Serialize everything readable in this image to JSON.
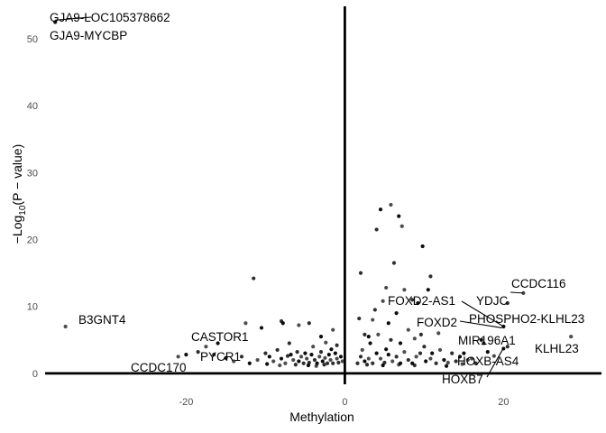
{
  "chart_data": {
    "type": "scatter",
    "xlabel": "Methylation",
    "ylabel_parts": {
      "base": "−Log",
      "sub": "10",
      "rest": "(P − value)"
    },
    "xlim": [
      -38,
      32
    ],
    "ylim": [
      -1.5,
      55
    ],
    "xticks": [
      -20,
      0,
      20
    ],
    "yticks": [
      0,
      10,
      20,
      30,
      40,
      50
    ],
    "grid": false,
    "point_color": "#000000",
    "labeled_points": [
      {
        "label": "GJA9-LOC105378662",
        "x": -36.5,
        "y": 52.8
      },
      {
        "label": "GJA9-MYCBP",
        "x": -36.5,
        "y": 52.5
      },
      {
        "label": "B3GNT4",
        "x": -35.2,
        "y": 7.0
      },
      {
        "label": "CASTOR1",
        "x": -15.8,
        "y": 3.6
      },
      {
        "label": "PYCR1",
        "x": -18.0,
        "y": 2.2
      },
      {
        "label": "CCDC170",
        "x": -24.5,
        "y": 1.0
      },
      {
        "label": "CCDC116",
        "x": 22.5,
        "y": 12.0
      },
      {
        "label": "YDJC",
        "x": 20.5,
        "y": 10.5
      },
      {
        "label": "FOXD2-AS1",
        "x": 20.0,
        "y": 7.0
      },
      {
        "label": "FOXD2",
        "x": 19.8,
        "y": 6.8
      },
      {
        "label": "PHOSPHO2-KLHL23",
        "x": 25.0,
        "y": 6.2
      },
      {
        "label": "KLHL23",
        "x": 28.5,
        "y": 5.5
      },
      {
        "label": "MIR196A1",
        "x": 20.5,
        "y": 4.0
      },
      {
        "label": "HOXB-AS4",
        "x": 20.0,
        "y": 3.7
      },
      {
        "label": "HOXB7",
        "x": 20.0,
        "y": 3.8
      }
    ],
    "points": [
      [
        -36.5,
        52.5
      ],
      [
        -35.2,
        7.0
      ],
      [
        -11.5,
        14.2
      ],
      [
        -10.5,
        6.8
      ],
      [
        -12.5,
        7.5
      ],
      [
        -8.0,
        7.8
      ],
      [
        -7.8,
        7.5
      ],
      [
        -5.8,
        7.2
      ],
      [
        -4.5,
        7.5
      ],
      [
        -3.0,
        5.5
      ],
      [
        -1.5,
        6.5
      ],
      [
        -1.0,
        4.2
      ],
      [
        -16.0,
        4.5
      ],
      [
        -17.5,
        4.0
      ],
      [
        -18.5,
        3.2
      ],
      [
        -20.0,
        2.8
      ],
      [
        -21.0,
        2.5
      ],
      [
        -16.5,
        2.8
      ],
      [
        -15.0,
        2.3
      ],
      [
        -14.0,
        1.8
      ],
      [
        -13.0,
        2.5
      ],
      [
        -12.0,
        1.5
      ],
      [
        -11.0,
        2.0
      ],
      [
        -10.0,
        3.0
      ],
      [
        -9.5,
        2.5
      ],
      [
        -9.0,
        1.8
      ],
      [
        -8.5,
        3.5
      ],
      [
        -8.0,
        2.2
      ],
      [
        -7.5,
        1.5
      ],
      [
        -7.0,
        4.5
      ],
      [
        -6.8,
        2.8
      ],
      [
        -6.5,
        2.0
      ],
      [
        -6.0,
        3.2
      ],
      [
        -5.8,
        1.8
      ],
      [
        -5.5,
        2.5
      ],
      [
        -5.2,
        1.5
      ],
      [
        -5.0,
        3.0
      ],
      [
        -4.8,
        2.2
      ],
      [
        -4.5,
        1.6
      ],
      [
        -4.2,
        2.8
      ],
      [
        -4.0,
        4.0
      ],
      [
        -3.8,
        2.0
      ],
      [
        -3.5,
        1.5
      ],
      [
        -3.2,
        2.5
      ],
      [
        -3.0,
        3.2
      ],
      [
        -2.8,
        1.8
      ],
      [
        -2.5,
        2.3
      ],
      [
        -2.2,
        1.5
      ],
      [
        -2.0,
        2.8
      ],
      [
        -1.8,
        2.0
      ],
      [
        -1.5,
        1.5
      ],
      [
        -1.2,
        3.0
      ],
      [
        -1.0,
        2.2
      ],
      [
        -0.8,
        1.6
      ],
      [
        -0.5,
        2.5
      ],
      [
        -0.3,
        1.8
      ],
      [
        -6.2,
        1.3
      ],
      [
        -4.6,
        1.2
      ],
      [
        -3.6,
        1.1
      ],
      [
        -2.6,
        1.3
      ],
      [
        -9.8,
        1.4
      ],
      [
        -8.2,
        1.2
      ],
      [
        -7.2,
        2.6
      ],
      [
        -1.7,
        3.6
      ],
      [
        -2.4,
        4.6
      ],
      [
        2.0,
        15.0
      ],
      [
        4.5,
        24.5
      ],
      [
        5.8,
        25.2
      ],
      [
        6.2,
        16.5
      ],
      [
        6.8,
        23.5
      ],
      [
        7.2,
        22.0
      ],
      [
        4.0,
        21.5
      ],
      [
        9.8,
        19.0
      ],
      [
        7.5,
        12.5
      ],
      [
        10.8,
        14.5
      ],
      [
        10.5,
        12.5
      ],
      [
        5.2,
        12.8
      ],
      [
        8.5,
        11.0
      ],
      [
        9.2,
        10.5
      ],
      [
        4.8,
        10.8
      ],
      [
        3.8,
        9.5
      ],
      [
        6.5,
        9.0
      ],
      [
        3.5,
        8.0
      ],
      [
        1.8,
        8.2
      ],
      [
        5.5,
        7.5
      ],
      [
        8.0,
        6.5
      ],
      [
        2.5,
        5.8
      ],
      [
        3.0,
        5.5
      ],
      [
        4.2,
        5.8
      ],
      [
        5.8,
        5.0
      ],
      [
        7.0,
        4.5
      ],
      [
        8.8,
        5.2
      ],
      [
        10.0,
        4.0
      ],
      [
        11.0,
        3.0
      ],
      [
        12.0,
        3.5
      ],
      [
        13.5,
        3.0
      ],
      [
        14.5,
        2.5
      ],
      [
        15.5,
        2.0
      ],
      [
        16.5,
        1.5
      ],
      [
        3.2,
        4.5
      ],
      [
        2.2,
        3.5
      ],
      [
        2.0,
        2.5
      ],
      [
        2.5,
        1.8
      ],
      [
        3.0,
        2.2
      ],
      [
        3.5,
        1.5
      ],
      [
        4.0,
        3.0
      ],
      [
        4.5,
        2.2
      ],
      [
        5.0,
        1.6
      ],
      [
        5.5,
        2.8
      ],
      [
        6.0,
        1.8
      ],
      [
        6.5,
        2.5
      ],
      [
        7.0,
        1.5
      ],
      [
        7.5,
        3.2
      ],
      [
        8.0,
        2.0
      ],
      [
        8.5,
        1.5
      ],
      [
        9.0,
        2.5
      ],
      [
        9.5,
        3.0
      ],
      [
        10.2,
        1.8
      ],
      [
        10.8,
        2.2
      ],
      [
        11.5,
        1.5
      ],
      [
        12.5,
        2.0
      ],
      [
        13.0,
        1.6
      ],
      [
        14.0,
        1.8
      ],
      [
        15.0,
        3.0
      ],
      [
        16.0,
        2.2
      ],
      [
        2.8,
        1.3
      ],
      [
        4.8,
        1.2
      ],
      [
        6.8,
        1.3
      ],
      [
        8.8,
        1.2
      ],
      [
        12.8,
        1.1
      ],
      [
        14.8,
        1.4
      ],
      [
        17.5,
        4.5
      ],
      [
        18.0,
        3.2
      ],
      [
        22.5,
        12.0
      ],
      [
        20.5,
        10.5
      ],
      [
        20.0,
        7.0
      ],
      [
        28.5,
        5.5
      ],
      [
        20.5,
        4.0
      ],
      [
        20.0,
        3.7
      ],
      [
        11.8,
        6.0
      ],
      [
        9.6,
        5.8
      ],
      [
        17.2,
        5.0
      ],
      [
        18.8,
        2.6
      ],
      [
        1.6,
        1.5
      ],
      [
        5.2,
        3.6
      ]
    ]
  }
}
